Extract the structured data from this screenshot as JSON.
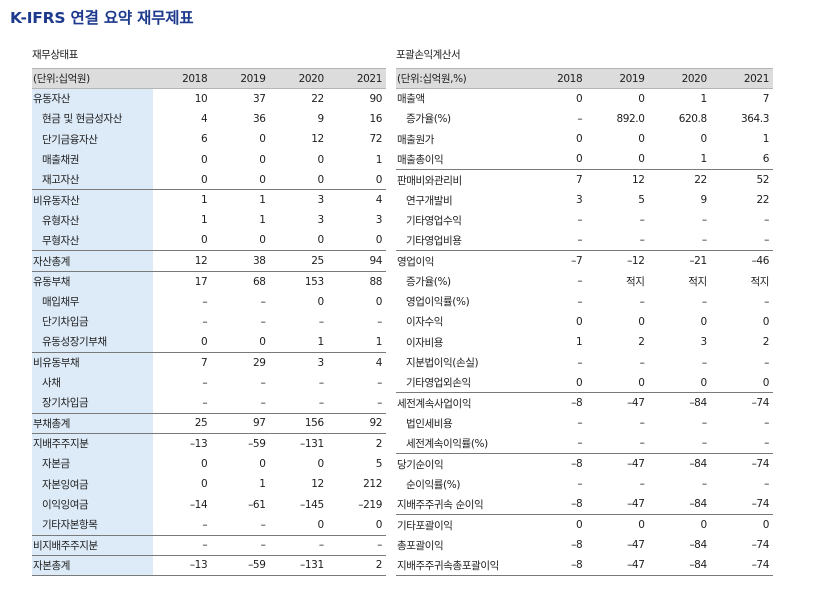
{
  "page": {
    "title": "K-IFRS 연결 요약 재무제표"
  },
  "balance_sheet": {
    "caption": "재무상태표",
    "unit_label": "(단위:십억원)",
    "years": [
      "2018",
      "2019",
      "2020",
      "2021"
    ],
    "rows": [
      {
        "label": "유동자산",
        "indent": false,
        "separator": false,
        "values": [
          "10",
          "37",
          "22",
          "90"
        ]
      },
      {
        "label": "현금 및 현금성자산",
        "indent": true,
        "separator": false,
        "values": [
          "4",
          "36",
          "9",
          "16"
        ]
      },
      {
        "label": "단기금융자산",
        "indent": true,
        "separator": false,
        "values": [
          "6",
          "0",
          "12",
          "72"
        ]
      },
      {
        "label": "매출채권",
        "indent": true,
        "separator": false,
        "values": [
          "0",
          "0",
          "0",
          "1"
        ]
      },
      {
        "label": "재고자산",
        "indent": true,
        "separator": false,
        "values": [
          "0",
          "0",
          "0",
          "0"
        ]
      },
      {
        "label": "비유동자산",
        "indent": false,
        "separator": true,
        "values": [
          "1",
          "1",
          "3",
          "4"
        ]
      },
      {
        "label": "유형자산",
        "indent": true,
        "separator": false,
        "values": [
          "1",
          "1",
          "3",
          "3"
        ]
      },
      {
        "label": "무형자산",
        "indent": true,
        "separator": false,
        "values": [
          "0",
          "0",
          "0",
          "0"
        ]
      },
      {
        "label": "자산총계",
        "indent": false,
        "separator": true,
        "values": [
          "12",
          "38",
          "25",
          "94"
        ]
      },
      {
        "label": "유동부채",
        "indent": false,
        "separator": true,
        "values": [
          "17",
          "68",
          "153",
          "88"
        ]
      },
      {
        "label": "매입채무",
        "indent": true,
        "separator": false,
        "values": [
          "–",
          "–",
          "0",
          "0"
        ]
      },
      {
        "label": "단기차입금",
        "indent": true,
        "separator": false,
        "values": [
          "–",
          "–",
          "–",
          "–"
        ]
      },
      {
        "label": "유동성장기부채",
        "indent": true,
        "separator": false,
        "values": [
          "0",
          "0",
          "1",
          "1"
        ]
      },
      {
        "label": "비유동부채",
        "indent": false,
        "separator": true,
        "values": [
          "7",
          "29",
          "3",
          "4"
        ]
      },
      {
        "label": "사채",
        "indent": true,
        "separator": false,
        "values": [
          "–",
          "–",
          "–",
          "–"
        ]
      },
      {
        "label": "장기차입금",
        "indent": true,
        "separator": false,
        "values": [
          "–",
          "–",
          "–",
          "–"
        ]
      },
      {
        "label": "부채총계",
        "indent": false,
        "separator": true,
        "values": [
          "25",
          "97",
          "156",
          "92"
        ]
      },
      {
        "label": "지배주주지분",
        "indent": false,
        "separator": true,
        "values": [
          "–13",
          "–59",
          "–131",
          "2"
        ]
      },
      {
        "label": "자본금",
        "indent": true,
        "separator": false,
        "values": [
          "0",
          "0",
          "0",
          "5"
        ]
      },
      {
        "label": "자본잉여금",
        "indent": true,
        "separator": false,
        "values": [
          "0",
          "1",
          "12",
          "212"
        ]
      },
      {
        "label": "이익잉여금",
        "indent": true,
        "separator": false,
        "values": [
          "–14",
          "–61",
          "–145",
          "–219"
        ]
      },
      {
        "label": "기타자본항목",
        "indent": true,
        "separator": false,
        "values": [
          "–",
          "–",
          "0",
          "0"
        ]
      },
      {
        "label": "비지배주주지분",
        "indent": false,
        "separator": true,
        "values": [
          "–",
          "–",
          "–",
          "–"
        ]
      },
      {
        "label": "자본총계",
        "indent": false,
        "separator": true,
        "values": [
          "–13",
          "–59",
          "–131",
          "2"
        ]
      }
    ]
  },
  "income_statement": {
    "caption": "포괄손익계산서",
    "unit_label": "(단위:십억원,%)",
    "years": [
      "2018",
      "2019",
      "2020",
      "2021"
    ],
    "rows": [
      {
        "label": "매출액",
        "indent": false,
        "separator": false,
        "values": [
          "0",
          "0",
          "1",
          "7"
        ]
      },
      {
        "label": "증가율(%)",
        "indent": true,
        "separator": false,
        "values": [
          "–",
          "892.0",
          "620.8",
          "364.3"
        ]
      },
      {
        "label": "매출원가",
        "indent": false,
        "separator": false,
        "values": [
          "0",
          "0",
          "0",
          "1"
        ]
      },
      {
        "label": "매출총이익",
        "indent": false,
        "separator": false,
        "values": [
          "0",
          "0",
          "1",
          "6"
        ]
      },
      {
        "label": "판매비와관리비",
        "indent": false,
        "separator": true,
        "values": [
          "7",
          "12",
          "22",
          "52"
        ]
      },
      {
        "label": "연구개발비",
        "indent": true,
        "separator": false,
        "values": [
          "3",
          "5",
          "9",
          "22"
        ]
      },
      {
        "label": "기타영업수익",
        "indent": true,
        "separator": false,
        "values": [
          "–",
          "–",
          "–",
          "–"
        ]
      },
      {
        "label": "기타영업비용",
        "indent": true,
        "separator": false,
        "values": [
          "–",
          "–",
          "–",
          "–"
        ]
      },
      {
        "label": "영업이익",
        "indent": false,
        "separator": true,
        "values": [
          "–7",
          "–12",
          "–21",
          "–46"
        ]
      },
      {
        "label": "증가율(%)",
        "indent": true,
        "separator": false,
        "values": [
          "–",
          "적지",
          "적지",
          "적지"
        ]
      },
      {
        "label": "영업이익률(%)",
        "indent": true,
        "separator": false,
        "values": [
          "–",
          "–",
          "–",
          "–"
        ]
      },
      {
        "label": "이자수익",
        "indent": true,
        "separator": false,
        "values": [
          "0",
          "0",
          "0",
          "0"
        ]
      },
      {
        "label": "이자비용",
        "indent": true,
        "separator": false,
        "values": [
          "1",
          "2",
          "3",
          "2"
        ]
      },
      {
        "label": "지분법이익(손실)",
        "indent": true,
        "separator": false,
        "values": [
          "–",
          "–",
          "–",
          "–"
        ]
      },
      {
        "label": "기타영업외손익",
        "indent": true,
        "separator": false,
        "values": [
          "0",
          "0",
          "0",
          "0"
        ]
      },
      {
        "label": "세전계속사업이익",
        "indent": false,
        "separator": true,
        "values": [
          "–8",
          "–47",
          "–84",
          "–74"
        ]
      },
      {
        "label": "법인세비용",
        "indent": true,
        "separator": false,
        "values": [
          "–",
          "–",
          "–",
          "–"
        ]
      },
      {
        "label": "세전계속이익률(%)",
        "indent": true,
        "separator": false,
        "values": [
          "–",
          "–",
          "–",
          "–"
        ]
      },
      {
        "label": "당기순이익",
        "indent": false,
        "separator": true,
        "values": [
          "–8",
          "–47",
          "–84",
          "–74"
        ]
      },
      {
        "label": "순이익률(%)",
        "indent": true,
        "separator": false,
        "values": [
          "–",
          "–",
          "–",
          "–"
        ]
      },
      {
        "label": "지배주주귀속 순이익",
        "indent": false,
        "separator": false,
        "values": [
          "–8",
          "–47",
          "–84",
          "–74"
        ]
      },
      {
        "label": "기타포괄이익",
        "indent": false,
        "separator": true,
        "values": [
          "0",
          "0",
          "0",
          "0"
        ]
      },
      {
        "label": "총포괄이익",
        "indent": false,
        "separator": false,
        "values": [
          "–8",
          "–47",
          "–84",
          "–74"
        ]
      },
      {
        "label": "지배주주귀속총포괄이익",
        "indent": false,
        "separator": false,
        "values": [
          "–8",
          "–47",
          "–84",
          "–74"
        ]
      }
    ]
  }
}
